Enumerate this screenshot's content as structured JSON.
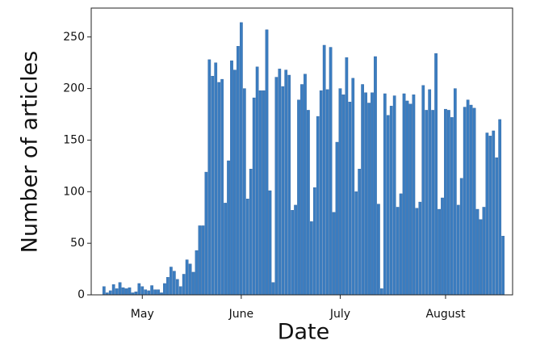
{
  "chart_data": {
    "type": "bar",
    "xlabel": "Date",
    "ylabel": "Number of articles",
    "x": [
      0,
      1,
      2,
      3,
      4,
      5,
      6,
      7,
      8,
      9,
      10,
      11,
      12,
      13,
      14,
      15,
      16,
      17,
      18,
      19,
      20,
      21,
      22,
      23,
      24,
      25,
      26,
      27,
      28,
      29,
      30,
      31,
      32,
      33,
      34,
      35,
      36,
      37,
      38,
      39,
      40,
      41,
      42,
      43,
      44,
      45,
      46,
      47,
      48,
      49,
      50,
      51,
      52,
      53,
      54,
      55,
      56,
      57,
      58,
      59,
      60,
      61,
      62,
      63,
      64,
      65,
      66,
      67,
      68,
      69,
      70,
      71,
      72,
      73,
      74,
      75,
      76,
      77,
      78,
      79,
      80,
      81,
      82,
      83,
      84,
      85,
      86,
      87,
      88,
      89,
      90,
      91,
      92,
      93,
      94,
      95,
      96,
      97,
      98,
      99,
      100,
      101,
      102,
      103,
      104,
      105,
      106,
      107,
      108,
      109,
      110,
      111,
      112,
      113,
      114,
      115,
      116,
      117,
      118,
      119,
      120,
      121,
      122,
      123,
      124,
      125
    ],
    "values": [
      8,
      2,
      4,
      10,
      6,
      12,
      7,
      6,
      7,
      2,
      3,
      11,
      8,
      5,
      4,
      9,
      5,
      5,
      2,
      11,
      17,
      27,
      23,
      15,
      8,
      20,
      34,
      30,
      22,
      43,
      67,
      67,
      119,
      228,
      212,
      225,
      206,
      209,
      89,
      130,
      227,
      218,
      241,
      264,
      200,
      93,
      122,
      191,
      221,
      198,
      198,
      257,
      101,
      12,
      211,
      219,
      202,
      218,
      213,
      82,
      87,
      189,
      204,
      214,
      179,
      71,
      104,
      173,
      198,
      242,
      199,
      240,
      80,
      148,
      200,
      194,
      230,
      187,
      210,
      100,
      122,
      204,
      196,
      186,
      196,
      231,
      88,
      6,
      195,
      174,
      183,
      193,
      85,
      98,
      195,
      188,
      185,
      194,
      84,
      90,
      203,
      179,
      199,
      179,
      234,
      83,
      94,
      180,
      179,
      172,
      200,
      87,
      113,
      182,
      189,
      184,
      181,
      83,
      73,
      85,
      157,
      154,
      159,
      133,
      170,
      57
    ],
    "color": "#3b7dc0",
    "xlim": [
      -4,
      128
    ],
    "xticks": [
      {
        "value": 12,
        "label": "May"
      },
      {
        "value": 43,
        "label": "June"
      },
      {
        "value": 74,
        "label": "July"
      },
      {
        "value": 107,
        "label": "August"
      }
    ],
    "ylim": [
      0,
      278
    ],
    "yticks": [
      0,
      50,
      100,
      150,
      200,
      250
    ]
  }
}
